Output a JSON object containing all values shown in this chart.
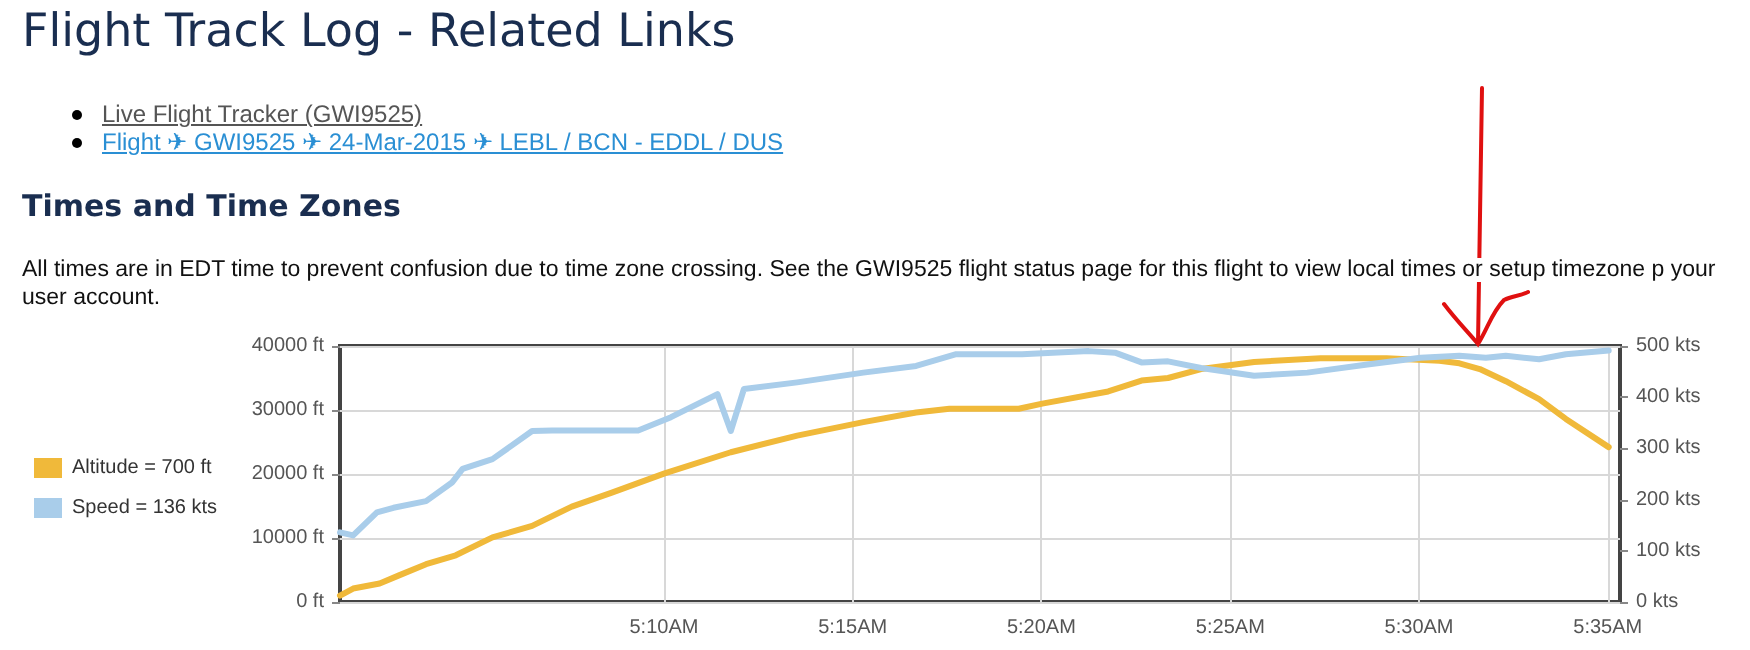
{
  "chart_data": {
    "type": "line",
    "title": "Flight Track Log - Related Links",
    "subtitle": "Times and Time Zones",
    "annotations": [
      "Live Flight Tracker (GWI9525)",
      "Flight ✈ GWI9525 ✈ 24-Mar-2015 ✈ LEBL / BCN - EDDL / DUS",
      "All times are in EDT time to prevent confusion due to time zone crossing. See the GWI9525 flight status page for this flight to view local times or setup timezone p your user account."
    ],
    "xlim": [
      5.0237,
      5.5887
    ],
    "xticks": [
      {
        "value": 5.1667,
        "label": "5:10AM"
      },
      {
        "value": 5.25,
        "label": "5:15AM"
      },
      {
        "value": 5.3333,
        "label": "5:20AM"
      },
      {
        "value": 5.4167,
        "label": "5:25AM"
      },
      {
        "value": 5.5,
        "label": "5:30AM"
      },
      {
        "value": 5.5833,
        "label": "5:35AM"
      }
    ],
    "ylim": [
      0,
      40000
    ],
    "yticks": [
      {
        "value": 0,
        "label": "0 ft"
      },
      {
        "value": 10000,
        "label": "10000 ft"
      },
      {
        "value": 20000,
        "label": "20000 ft"
      },
      {
        "value": 30000,
        "label": "30000 ft"
      },
      {
        "value": 40000,
        "label": "40000 ft"
      }
    ],
    "y2lim": [
      0,
      500
    ],
    "y2ticks": [
      {
        "value": 0,
        "label": "0 kts"
      },
      {
        "value": 100,
        "label": "100 kts"
      },
      {
        "value": 200,
        "label": "200 kts"
      },
      {
        "value": 300,
        "label": "300 kts"
      },
      {
        "value": 400,
        "label": "400 kts"
      },
      {
        "value": 500,
        "label": "500 kts"
      }
    ],
    "grid": true,
    "legend": "left",
    "marker": "none",
    "line_style": "solid",
    "series": [
      {
        "name": "Altitude = 700 ft",
        "color": "#f0b93a",
        "x": [
          5.0237,
          5.0295,
          5.0412,
          5.05,
          5.0617,
          5.0748,
          5.091,
          5.1085,
          5.126,
          5.1437,
          5.167,
          5.1962,
          5.2255,
          5.2547,
          5.278,
          5.2927,
          5.3233,
          5.3337,
          5.3628,
          5.3775,
          5.3892,
          5.4038,
          5.4272,
          5.4565,
          5.4857,
          5.509,
          5.5178,
          5.5268,
          5.5383,
          5.553,
          5.5648,
          5.5837
        ],
        "values": [
          1000,
          2100,
          2900,
          4200,
          5900,
          7300,
          10100,
          11900,
          14900,
          17100,
          20100,
          23400,
          26000,
          28100,
          29600,
          30200,
          30200,
          31000,
          32900,
          34600,
          35000,
          36400,
          37500,
          38100,
          38100,
          37700,
          37300,
          36400,
          34500,
          31700,
          28600,
          24200
        ]
      },
      {
        "name": "Speed = 136 kts",
        "axis": "y2",
        "color": "#a9cdea",
        "x": [
          5.0237,
          5.0295,
          5.04,
          5.0473,
          5.0617,
          5.0733,
          5.0778,
          5.091,
          5.1085,
          5.1173,
          5.1553,
          5.1698,
          5.1903,
          5.1962,
          5.202,
          5.2255,
          5.2547,
          5.278,
          5.2957,
          5.3248,
          5.3542,
          5.3658,
          5.3775,
          5.3892,
          5.4038,
          5.4272,
          5.4507,
          5.4772,
          5.5007,
          5.5178,
          5.5295,
          5.5383,
          5.553,
          5.5648,
          5.5837
        ],
        "values": [
          136,
          130,
          175,
          184,
          197,
          234,
          260,
          279,
          334,
          335,
          335,
          361,
          406,
          334,
          416,
          429,
          448,
          461,
          484,
          484,
          490,
          487,
          468,
          470,
          457,
          442,
          448,
          464,
          477,
          481,
          477,
          481,
          474,
          484,
          491
        ]
      }
    ]
  }
}
